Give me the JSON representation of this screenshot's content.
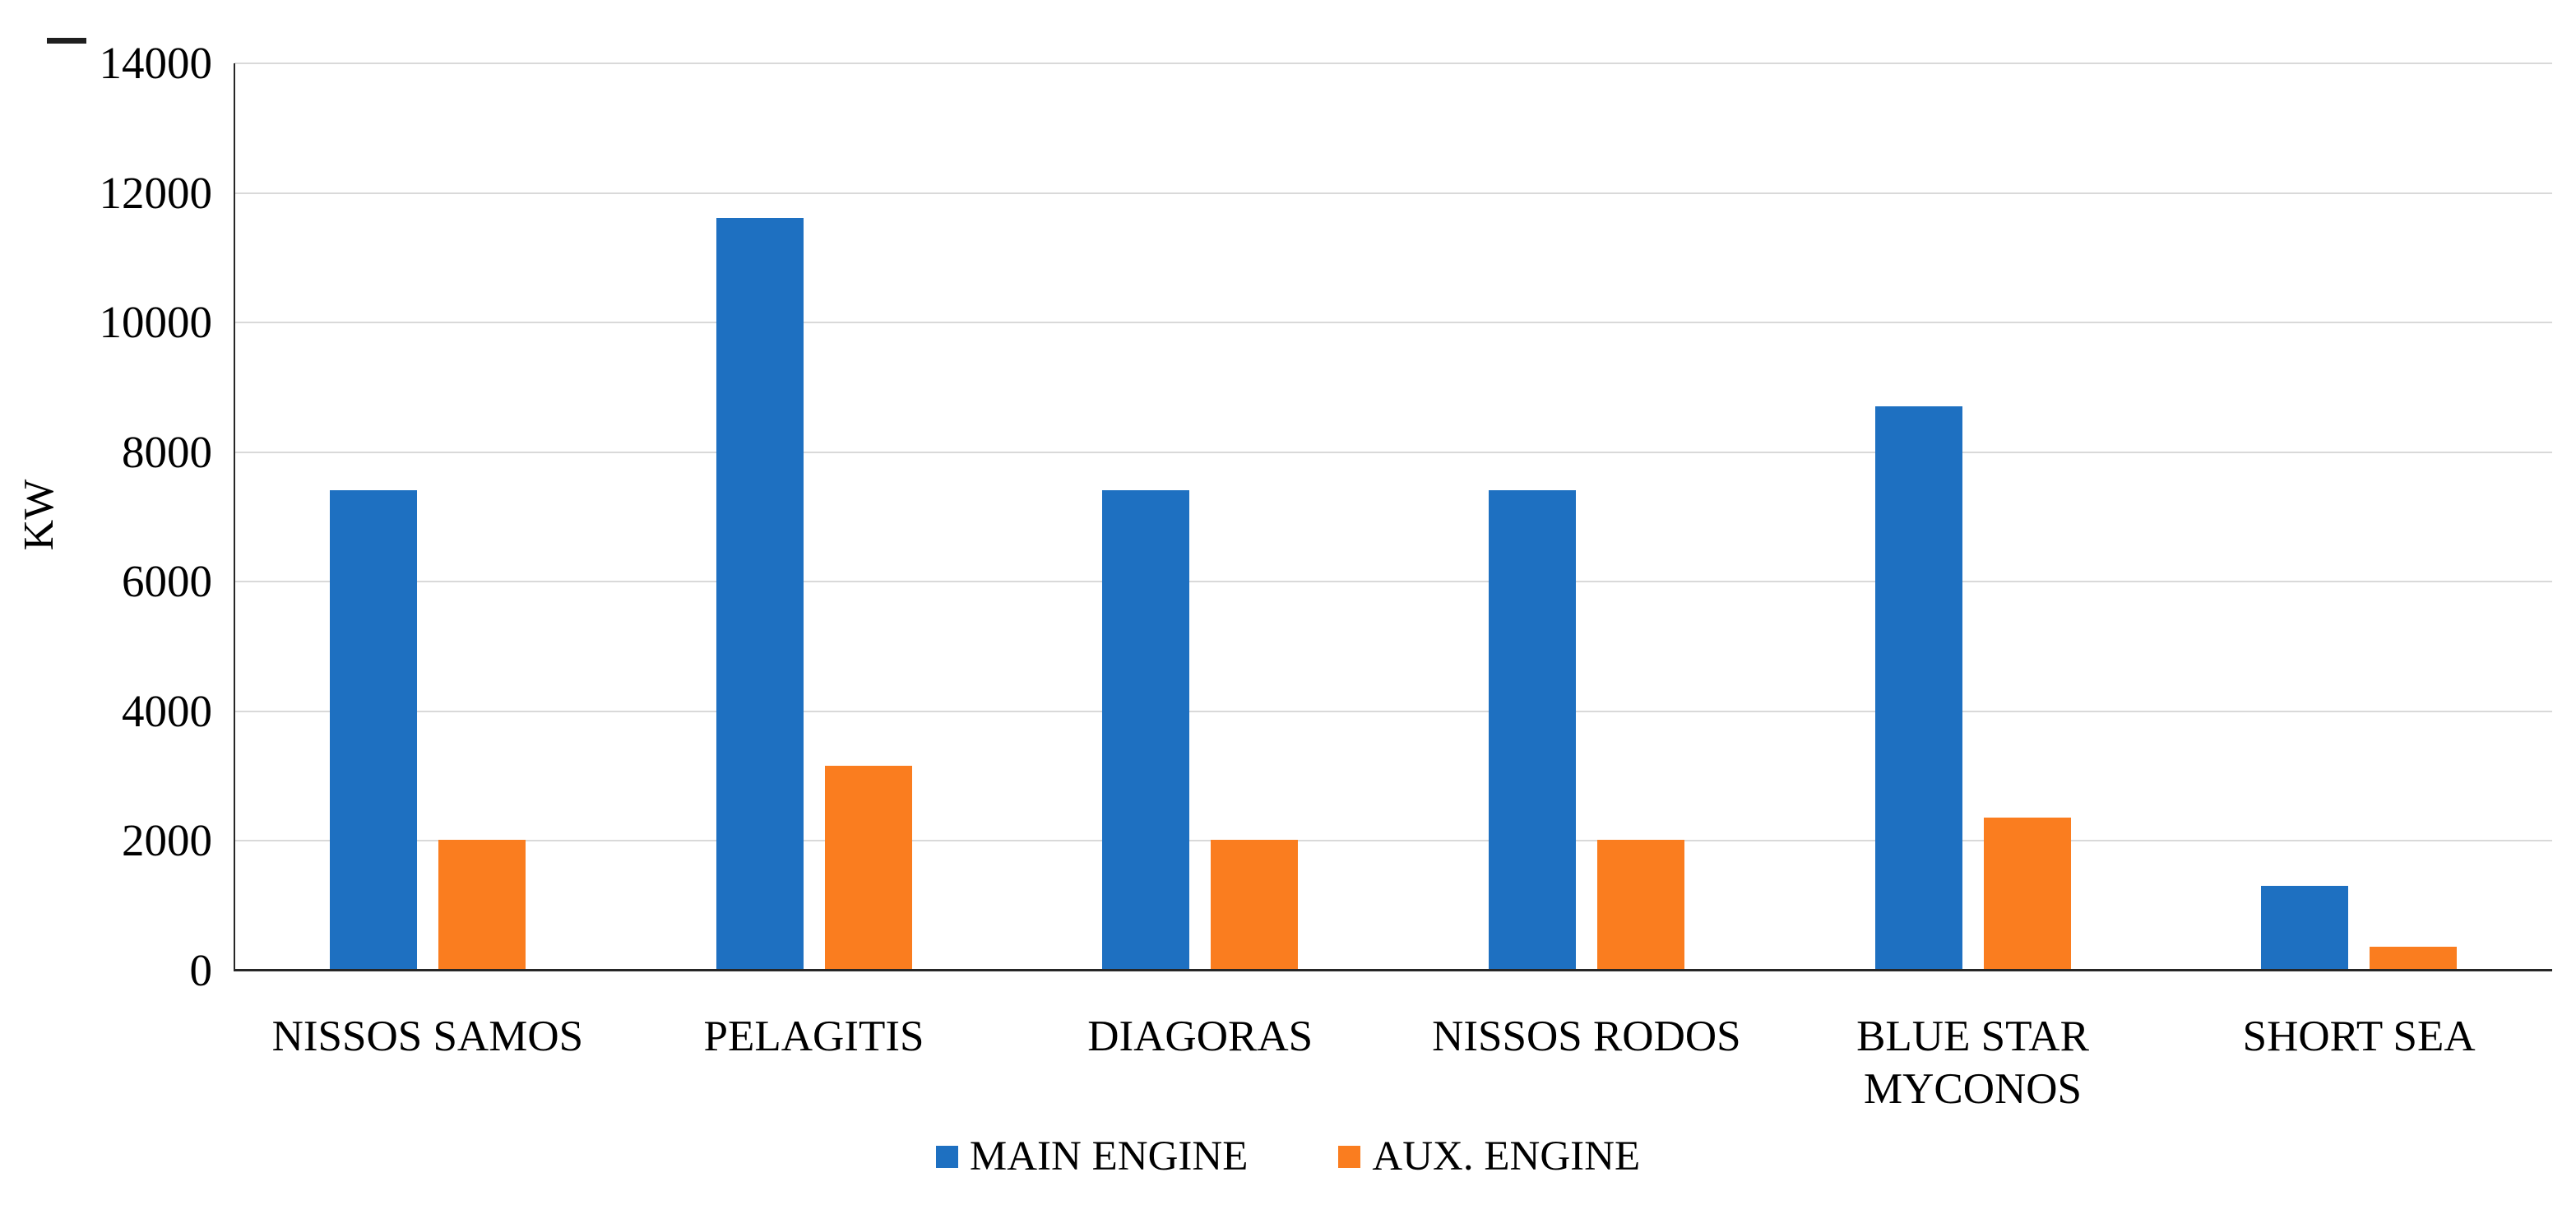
{
  "page": {
    "background": "#ffffff",
    "stray_mark_glyph": "-"
  },
  "chart_data": {
    "type": "bar",
    "title": "",
    "xlabel": "",
    "ylabel": "KW",
    "categories": [
      "NISSOS SAMOS",
      "PELAGITIS",
      "DIAGORAS",
      "NISSOS RODOS",
      "BLUE STAR MYCONOS",
      "SHORT SEA"
    ],
    "series": [
      {
        "name": "MAIN ENGINE",
        "color": "#1E70C1",
        "values": [
          7400,
          11600,
          7400,
          7400,
          8700,
          1300
        ]
      },
      {
        "name": "AUX. ENGINE",
        "color": "#FA7D1F",
        "values": [
          2000,
          3150,
          2000,
          2000,
          2350,
          350
        ]
      }
    ],
    "ylim": [
      0,
      14000
    ],
    "yticks": [
      0,
      2000,
      4000,
      6000,
      8000,
      10000,
      12000,
      14000
    ],
    "grid": true,
    "legend_position": "bottom",
    "colors": {
      "gridline": "#d9d9d9",
      "axis": "#262626",
      "text": "#000000"
    }
  }
}
